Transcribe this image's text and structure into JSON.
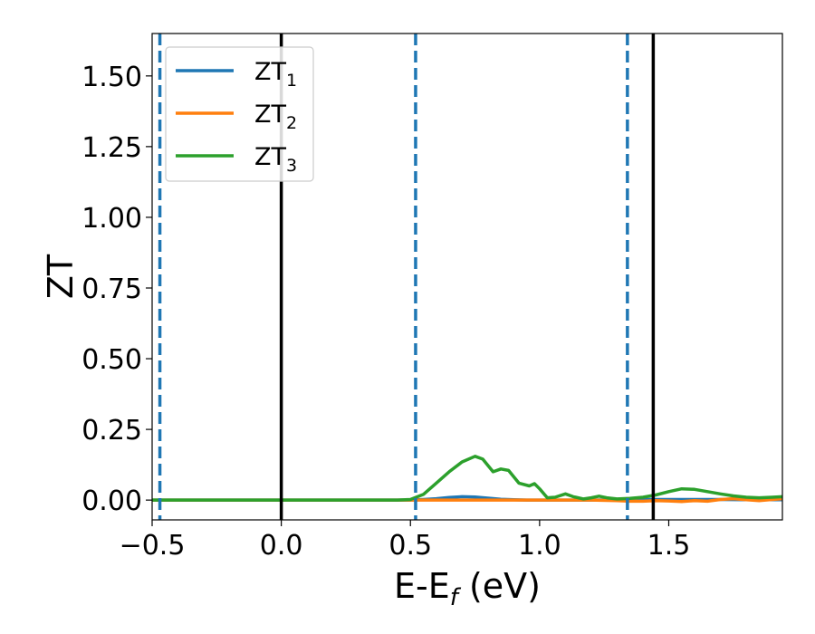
{
  "chart_data": {
    "type": "line",
    "xlabel": {
      "main": "E-E",
      "sub": "f",
      "suffix": " (eV)"
    },
    "ylabel": "ZT",
    "xlim": [
      -0.5,
      1.94
    ],
    "ylim": [
      -0.07,
      1.65
    ],
    "xticks": [
      {
        "value": -0.5,
        "label": "−0.5"
      },
      {
        "value": 0.0,
        "label": "0.0"
      },
      {
        "value": 0.5,
        "label": "0.5"
      },
      {
        "value": 1.0,
        "label": "1.0"
      },
      {
        "value": 1.5,
        "label": "1.5"
      }
    ],
    "yticks": [
      {
        "value": 0.0,
        "label": "0.00"
      },
      {
        "value": 0.25,
        "label": "0.25"
      },
      {
        "value": 0.5,
        "label": "0.50"
      },
      {
        "value": 0.75,
        "label": "0.75"
      },
      {
        "value": 1.0,
        "label": "1.00"
      },
      {
        "value": 1.25,
        "label": "1.25"
      },
      {
        "value": 1.5,
        "label": "1.50"
      }
    ],
    "grid": false,
    "legend_position": "top-left",
    "series": [
      {
        "name": {
          "main": "ZT",
          "sub": "1"
        },
        "color": "#1f77b4",
        "x": [
          -0.5,
          0.5,
          0.55,
          0.6,
          0.65,
          0.7,
          0.75,
          0.8,
          0.85,
          0.9,
          0.95,
          1.0,
          1.1,
          1.2,
          1.3,
          1.4,
          1.5,
          1.6,
          1.7,
          1.8,
          1.94
        ],
        "y": [
          0,
          0,
          0.002,
          0.005,
          0.009,
          0.012,
          0.011,
          0.007,
          0.003,
          0.001,
          0,
          0,
          0,
          0,
          0.001,
          0.002,
          0.002,
          0.002,
          0.002,
          0.001,
          0.001
        ]
      },
      {
        "name": {
          "main": "ZT",
          "sub": "2"
        },
        "color": "#ff7f0e",
        "x": [
          -0.5,
          1.2,
          1.3,
          1.35,
          1.4,
          1.45,
          1.5,
          1.55,
          1.6,
          1.65,
          1.7,
          1.75,
          1.8,
          1.85,
          1.9,
          1.94
        ],
        "y": [
          0,
          0,
          -0.002,
          -0.004,
          -0.004,
          -0.002,
          -0.003,
          -0.005,
          -0.002,
          -0.004,
          0.002,
          0.005,
          0.001,
          -0.002,
          0.002,
          0.005
        ]
      },
      {
        "name": {
          "main": "ZT",
          "sub": "3"
        },
        "color": "#2ca02c",
        "x": [
          -0.5,
          0.45,
          0.5,
          0.55,
          0.6,
          0.65,
          0.7,
          0.75,
          0.78,
          0.82,
          0.85,
          0.88,
          0.92,
          0.96,
          0.98,
          1.0,
          1.03,
          1.06,
          1.1,
          1.13,
          1.17,
          1.2,
          1.23,
          1.26,
          1.3,
          1.35,
          1.4,
          1.45,
          1.5,
          1.55,
          1.6,
          1.65,
          1.7,
          1.75,
          1.8,
          1.85,
          1.9,
          1.94
        ],
        "y": [
          0,
          0,
          0.002,
          0.02,
          0.06,
          0.1,
          0.135,
          0.155,
          0.145,
          0.1,
          0.11,
          0.105,
          0.06,
          0.05,
          0.058,
          0.04,
          0.008,
          0.01,
          0.022,
          0.012,
          0.004,
          0.008,
          0.014,
          0.008,
          0.004,
          0.006,
          0.01,
          0.018,
          0.03,
          0.04,
          0.038,
          0.03,
          0.022,
          0.015,
          0.01,
          0.008,
          0.01,
          0.012
        ]
      }
    ],
    "vlines": [
      {
        "x": -0.47,
        "color": "#1f77b4",
        "style": "dashed"
      },
      {
        "x": 0.0,
        "color": "#000000",
        "style": "solid"
      },
      {
        "x": 0.52,
        "color": "#1f77b4",
        "style": "dashed"
      },
      {
        "x": 1.34,
        "color": "#1f77b4",
        "style": "dashed"
      },
      {
        "x": 1.44,
        "color": "#000000",
        "style": "solid"
      }
    ]
  }
}
